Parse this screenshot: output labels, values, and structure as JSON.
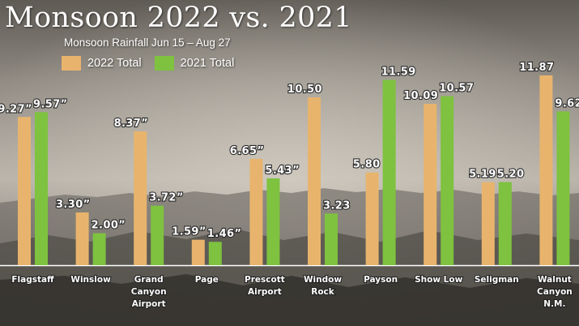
{
  "title": "Monsoon 2022 vs. 2021",
  "subtitle": "Monsoon Rainfall Jun 15 – Aug 27",
  "legend": {
    "s2022": "2022 Total",
    "s2021": "2021 Total"
  },
  "colors": {
    "s2022": "#e8b46d",
    "s2021": "#7ec23f"
  },
  "chart_data": {
    "type": "bar",
    "title": "Monsoon 2022 vs. 2021",
    "subtitle": "Monsoon Rainfall Jun 15 – Aug 27",
    "xlabel": "",
    "ylabel": "",
    "ylim": [
      0,
      12
    ],
    "grid": false,
    "legend_position": "top-left",
    "categories": [
      [
        "Flagstaff"
      ],
      [
        "Winslow"
      ],
      [
        "Grand",
        "Canyon",
        "Airport"
      ],
      [
        "Page"
      ],
      [
        "Prescott",
        "Airport"
      ],
      [
        "Window",
        "Rock"
      ],
      [
        "Payson"
      ],
      [
        "Show Low"
      ],
      [
        "Seligman"
      ],
      [
        "Walnut",
        "Canyon",
        "N.M."
      ]
    ],
    "series": [
      {
        "name": "2022 Total",
        "values": [
          9.27,
          3.3,
          8.37,
          1.59,
          6.65,
          10.5,
          5.8,
          10.09,
          5.19,
          11.87
        ],
        "labels": [
          "9.27”",
          "3.30”",
          "8.37”",
          "1.59”",
          "6.65”",
          "10.50",
          "5.80",
          "10.09",
          "5.19",
          "11.87"
        ]
      },
      {
        "name": "2021 Total",
        "values": [
          9.57,
          2.0,
          3.72,
          1.46,
          5.43,
          3.23,
          11.59,
          10.57,
          5.2,
          9.62
        ],
        "labels": [
          "9.57”",
          "2.00”",
          "3.72”",
          "1.46”",
          "5.43”",
          "3.23",
          "11.59",
          "10.57",
          "5.20",
          "9.62"
        ]
      }
    ]
  }
}
